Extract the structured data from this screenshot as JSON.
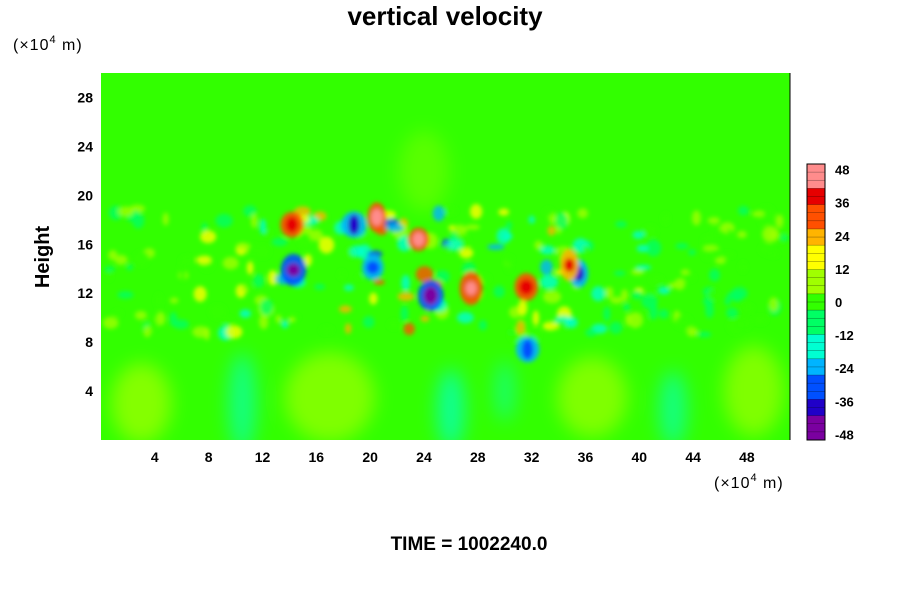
{
  "chart_data": {
    "type": "heatmap",
    "title": "vertical velocity",
    "ylabel": "Height",
    "x_unit": {
      "prefix": "(×10",
      "exp": "4",
      "suffix": " m)"
    },
    "y_unit": {
      "prefix": "(×10",
      "exp": "4",
      "suffix": " m)"
    },
    "xlim": [
      0,
      51.2
    ],
    "ylim": [
      0,
      30
    ],
    "x_ticks": [
      4,
      8,
      12,
      16,
      20,
      24,
      28,
      32,
      36,
      40,
      44,
      48
    ],
    "y_ticks": [
      4,
      8,
      12,
      16,
      20,
      24,
      28
    ],
    "colorbar": {
      "range": [
        -50,
        50
      ],
      "ticks": [
        48,
        36,
        24,
        12,
        0,
        -12,
        -24,
        -36,
        -48
      ],
      "colors": [
        "#7a00a0",
        "#2000c8",
        "#0050ff",
        "#00b4ff",
        "#00ffd2",
        "#00ff64",
        "#32ff00",
        "#a0ff00",
        "#ffff00",
        "#ffb400",
        "#ff5000",
        "#e60000",
        "#ff8c8c"
      ]
    },
    "features": [
      {
        "x": 14.3,
        "y": 13.9,
        "value": -46
      },
      {
        "x": 18.8,
        "y": 17.6,
        "value": -38
      },
      {
        "x": 24.5,
        "y": 11.8,
        "value": -44
      },
      {
        "x": 31.7,
        "y": 7.4,
        "value": -30
      },
      {
        "x": 35.5,
        "y": 13.6,
        "value": -36
      },
      {
        "x": 20.2,
        "y": 14.1,
        "value": -28
      },
      {
        "x": 14.2,
        "y": 17.6,
        "value": 42
      },
      {
        "x": 20.5,
        "y": 18.2,
        "value": 46
      },
      {
        "x": 23.6,
        "y": 16.4,
        "value": 48
      },
      {
        "x": 27.5,
        "y": 12.4,
        "value": 44
      },
      {
        "x": 31.6,
        "y": 12.5,
        "value": 40
      },
      {
        "x": 34.8,
        "y": 14.3,
        "value": 38
      }
    ]
  },
  "footer": {
    "time_label": "TIME = 1002240.0"
  }
}
